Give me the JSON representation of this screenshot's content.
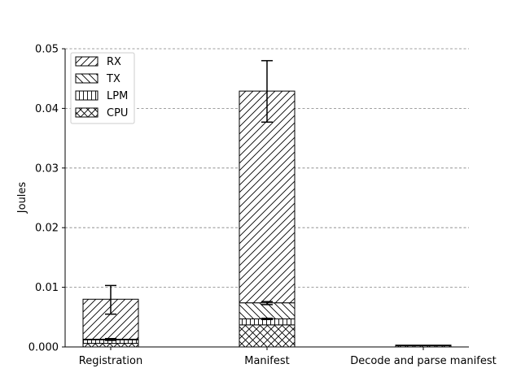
{
  "chart_data": {
    "type": "bar",
    "stacked": true,
    "title": "",
    "xlabel": "",
    "ylabel": "Joules",
    "ylim": [
      0,
      0.05
    ],
    "yticks": [
      "0.000",
      "0.01",
      "0.02",
      "0.03",
      "0.04",
      "0.05"
    ],
    "ytick_values": [
      0,
      0.01,
      0.02,
      0.03,
      0.04,
      0.05
    ],
    "grid": "horizontal dashed",
    "legend_position": "top-left",
    "categories": [
      "Registration",
      "Manifest",
      "Decode and parse manifest"
    ],
    "series": [
      {
        "name": "CPU",
        "hatch": "crosshatch",
        "values": [
          0.0006,
          0.0037,
          0.0002
        ]
      },
      {
        "name": "LPM",
        "hatch": "vertical",
        "values": [
          0.0006,
          0.001,
          0.0001
        ]
      },
      {
        "name": "TX",
        "hatch": "backslash",
        "values": [
          0.0001,
          0.0027,
          0.0
        ]
      },
      {
        "name": "RX",
        "hatch": "slash",
        "values": [
          0.0067,
          0.0355,
          0.0
        ]
      }
    ],
    "error_bars": [
      {
        "category": "Registration",
        "series": "RX",
        "low": 0.0055,
        "high": 0.0103
      },
      {
        "category": "Registration",
        "series": "LPM",
        "low": 0.0011,
        "high": 0.0014
      },
      {
        "category": "Manifest",
        "series": "RX",
        "low": 0.0377,
        "high": 0.048
      },
      {
        "category": "Manifest",
        "series": "TX",
        "low": 0.0071,
        "high": 0.0076
      },
      {
        "category": "Manifest",
        "series": "LPM",
        "low": 0.0046,
        "high": 0.0048
      }
    ],
    "legend_order": [
      "RX",
      "TX",
      "LPM",
      "CPU"
    ]
  }
}
